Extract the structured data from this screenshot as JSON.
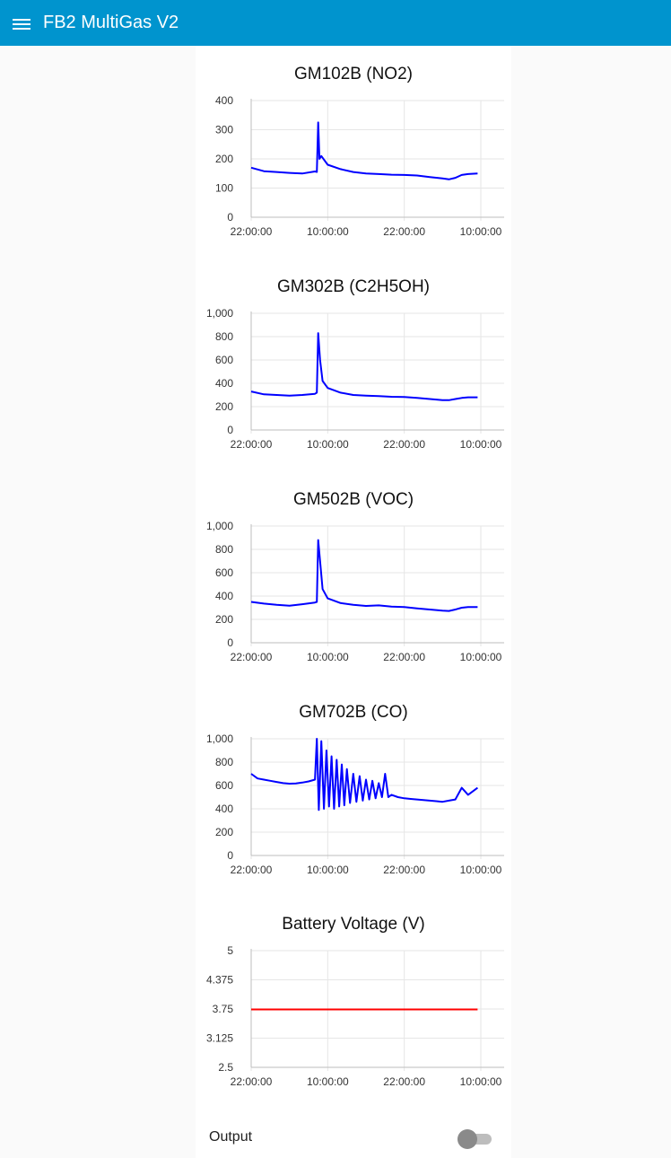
{
  "header": {
    "title": "FB2 MultiGas V2"
  },
  "output": {
    "label": "Output",
    "state": "off"
  },
  "chart_data": [
    {
      "type": "line",
      "title": "GM102B (NO2)",
      "color": "#0000ff",
      "yticks": [
        "0",
        "100",
        "200",
        "300",
        "400"
      ],
      "ylim": [
        0,
        400
      ],
      "xticks": [
        "22:00:00",
        "10:00:00",
        "22:00:00",
        "10:00:00"
      ],
      "x": [
        0,
        2,
        4,
        6,
        8,
        10,
        10.3,
        10.5,
        10.7,
        11,
        12,
        14,
        16,
        18,
        20,
        22,
        24,
        26,
        28,
        30,
        31,
        32,
        33,
        34,
        35.5
      ],
      "y": [
        170,
        158,
        155,
        152,
        150,
        157,
        155,
        325,
        200,
        210,
        180,
        165,
        155,
        150,
        148,
        146,
        145,
        143,
        138,
        133,
        130,
        135,
        145,
        148,
        150
      ]
    },
    {
      "type": "line",
      "title": "GM302B (C2H5OH)",
      "color": "#0000ff",
      "yticks": [
        "0",
        "200",
        "400",
        "600",
        "800",
        "1,000"
      ],
      "ylim": [
        0,
        1000
      ],
      "xticks": [
        "22:00:00",
        "10:00:00",
        "22:00:00",
        "10:00:00"
      ],
      "x": [
        0,
        2,
        4,
        6,
        8,
        10,
        10.3,
        10.5,
        10.8,
        11.2,
        12,
        14,
        16,
        18,
        20,
        22,
        24,
        26,
        28,
        30,
        31,
        32,
        33,
        34,
        35.5
      ],
      "y": [
        330,
        305,
        300,
        295,
        300,
        310,
        320,
        830,
        600,
        420,
        360,
        320,
        300,
        295,
        290,
        285,
        282,
        275,
        265,
        255,
        255,
        265,
        275,
        280,
        280
      ]
    },
    {
      "type": "line",
      "title": "GM502B (VOC)",
      "color": "#0000ff",
      "yticks": [
        "0",
        "200",
        "400",
        "600",
        "800",
        "1,000"
      ],
      "ylim": [
        0,
        1000
      ],
      "xticks": [
        "22:00:00",
        "10:00:00",
        "22:00:00",
        "10:00:00"
      ],
      "x": [
        0,
        2,
        4,
        6,
        8,
        10,
        10.3,
        10.5,
        10.8,
        11.2,
        12,
        14,
        16,
        18,
        20,
        22,
        24,
        26,
        28,
        30,
        31,
        32,
        33,
        34,
        35.5
      ],
      "y": [
        350,
        335,
        325,
        318,
        330,
        345,
        350,
        880,
        700,
        460,
        380,
        340,
        325,
        315,
        320,
        310,
        305,
        295,
        285,
        275,
        272,
        285,
        300,
        305,
        305
      ]
    },
    {
      "type": "line",
      "title": "GM702B (CO)",
      "color": "#0000ff",
      "yticks": [
        "0",
        "200",
        "400",
        "600",
        "800",
        "1,000"
      ],
      "ylim": [
        0,
        1000
      ],
      "xticks": [
        "22:00:00",
        "10:00:00",
        "22:00:00",
        "10:00:00"
      ],
      "x": [
        0,
        1,
        2,
        3,
        4,
        5,
        6,
        7,
        8,
        9,
        10,
        10.3,
        10.6,
        11,
        11.4,
        11.8,
        12.2,
        12.6,
        13,
        13.4,
        13.8,
        14.2,
        14.6,
        15,
        15.5,
        16,
        16.5,
        17,
        17.5,
        18,
        18.5,
        19,
        19.5,
        20,
        20.5,
        21,
        21.5,
        22,
        23,
        24,
        25,
        26,
        27,
        28,
        29,
        30,
        31,
        32,
        33,
        34,
        35.5
      ],
      "y": [
        700,
        660,
        650,
        640,
        630,
        620,
        615,
        618,
        625,
        635,
        650,
        1000,
        390,
        980,
        400,
        900,
        420,
        850,
        400,
        820,
        420,
        780,
        430,
        740,
        450,
        700,
        460,
        680,
        470,
        650,
        480,
        640,
        490,
        620,
        500,
        700,
        500,
        520,
        500,
        490,
        485,
        480,
        475,
        470,
        465,
        460,
        470,
        480,
        580,
        520,
        580
      ]
    },
    {
      "type": "line",
      "title": "Battery Voltage (V)",
      "color": "#ff0000",
      "yticks": [
        "2.5",
        "3.125",
        "3.75",
        "4.375",
        "5"
      ],
      "ylim": [
        2.5,
        5
      ],
      "xticks": [
        "22:00:00",
        "10:00:00",
        "22:00:00",
        "10:00:00"
      ],
      "x": [
        0,
        35.5
      ],
      "y": [
        3.74,
        3.74
      ]
    }
  ]
}
